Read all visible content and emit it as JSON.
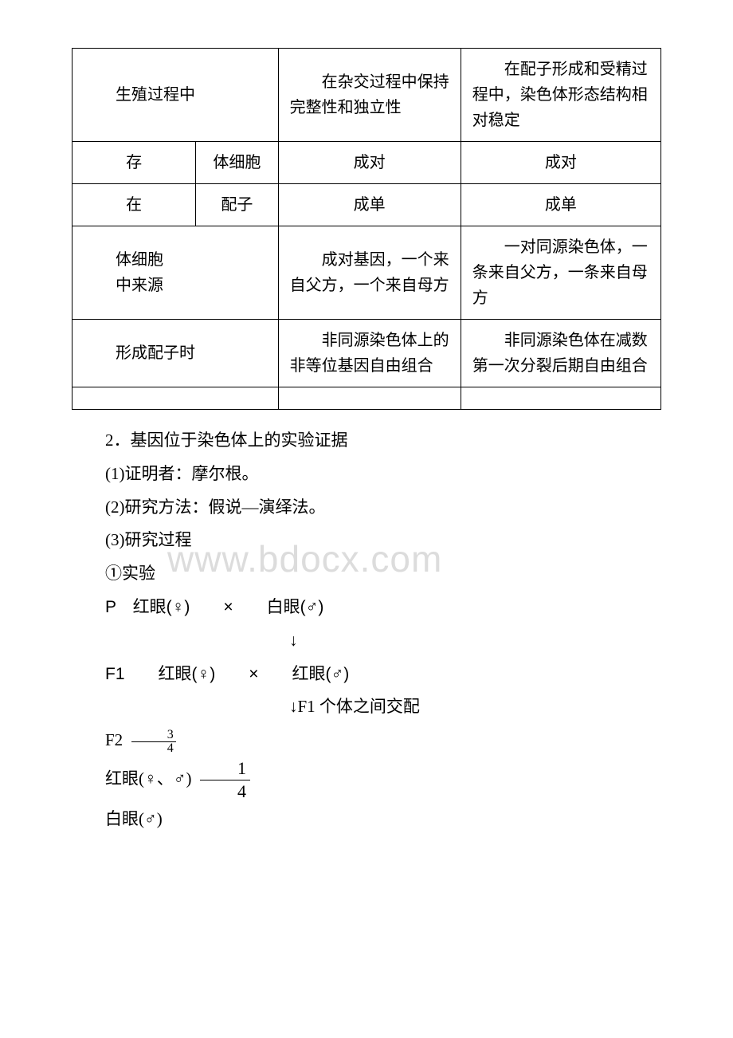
{
  "watermark": "www.bdocx.com",
  "table": {
    "rows": [
      {
        "c1": "生殖过程中",
        "c1_colspan": 2,
        "c3": "　　在杂交过程中保持完整性和独立性",
        "c4": "　　在配子形成和受精过程中，染色体形态结构相对稳定"
      },
      {
        "c1": "存",
        "c2": "体细胞",
        "c3": "成对",
        "c3_align": "center",
        "c4": "成对",
        "c4_align": "center"
      },
      {
        "c1": "在",
        "c2": "配子",
        "c3": "成单",
        "c3_align": "center",
        "c4": "成单",
        "c4_align": "center"
      },
      {
        "c1_lines": [
          "体细胞",
          "中来源"
        ],
        "c1_colspan": 2,
        "c3": "　　成对基因，一个来自父方，一个来自母方",
        "c4": "　　一对同源染色体，一条来自父方，一条来自母方"
      },
      {
        "c1": "形成配子时",
        "c1_colspan": 2,
        "c3": "　　非同源染色体上的非等位基因自由组合",
        "c4": "　　非同源染色体在减数第一次分裂后期自由组合"
      }
    ]
  },
  "lines": {
    "l1": "2．基因位于染色体上的实验证据",
    "l2": "(1)证明者：摩尔根。",
    "l3": "(2)研究方法：假说—演绎法。",
    "l4": "(3)研究过程",
    "l5": "①实验",
    "p_line": "P　红眼(♀)　　×　　白眼(♂)",
    "arrow1": "↓",
    "f1_line": "F1　　红眼(♀)　　×　　红眼(♂)",
    "arrow2": "↓F1 个体之间交配",
    "f2_prefix": "F2",
    "f2_frac_num": "3",
    "f2_frac_den": "4",
    "red_line_prefix": "红眼(♀、♂)",
    "red_frac_num": "1",
    "red_frac_den": "4",
    "white_line": "白眼(♂)"
  }
}
